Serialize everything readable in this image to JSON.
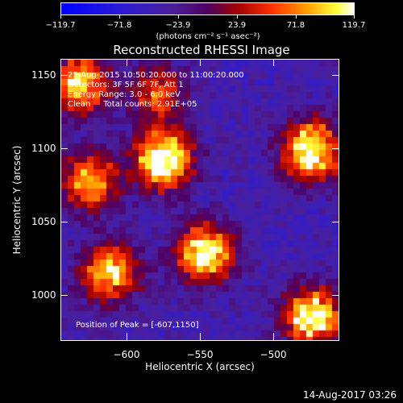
{
  "colorbar": {
    "ticks": [
      "−119.7",
      "−71.8",
      "−23.9",
      "23.9",
      "71.8",
      "119.7"
    ],
    "units": "(photons cm⁻² s⁻¹ asec⁻²)"
  },
  "title": "Reconstructed RHESSI Image",
  "info": {
    "line1": "25-Aug-2015 10:50:20.000 to 11:00:20.000",
    "line2": "Detectors: 3F 5F 6F 7F, Att 1",
    "line3": "Energy Range: 3.0 - 6.0 keV",
    "line4": "Clean     Total counts: 2.91E+05",
    "peak": "Position of Peak = [-607,1150]"
  },
  "axes": {
    "xlabel": "Heliocentric X (arcsec)",
    "ylabel": "Heliocentric Y (arcsec)",
    "xticks": [
      "−600",
      "−550",
      "−500"
    ],
    "yticks": [
      "1150",
      "1100",
      "1050",
      "1000"
    ]
  },
  "timestamp": "14-Aug-2017 03:26",
  "chart_data": {
    "type": "heatmap",
    "title": "Reconstructed RHESSI Image",
    "xlabel": "Heliocentric X (arcsec)",
    "ylabel": "Heliocentric Y (arcsec)",
    "xlim": [
      -645,
      -452
    ],
    "ylim": [
      969,
      1163
    ],
    "color_range": [
      -119.7,
      119.7
    ],
    "colorbar_units": "(photons cm⁻² s⁻¹ asec⁻²)",
    "peak": [
      -607,
      1150
    ],
    "bright_sources": [
      {
        "x": -574,
        "y": 1094,
        "level": 1.0
      },
      {
        "x": -471,
        "y": 1100,
        "level": 1.0
      },
      {
        "x": -545,
        "y": 1029,
        "level": 0.95
      },
      {
        "x": -611,
        "y": 1016,
        "level": 0.8
      },
      {
        "x": -632,
        "y": 1146,
        "level": 0.8
      },
      {
        "x": -625,
        "y": 1079,
        "level": 0.7
      },
      {
        "x": -470,
        "y": 985,
        "level": 0.95
      },
      {
        "x": -578,
        "y": 1140,
        "level": 0.5
      }
    ]
  }
}
